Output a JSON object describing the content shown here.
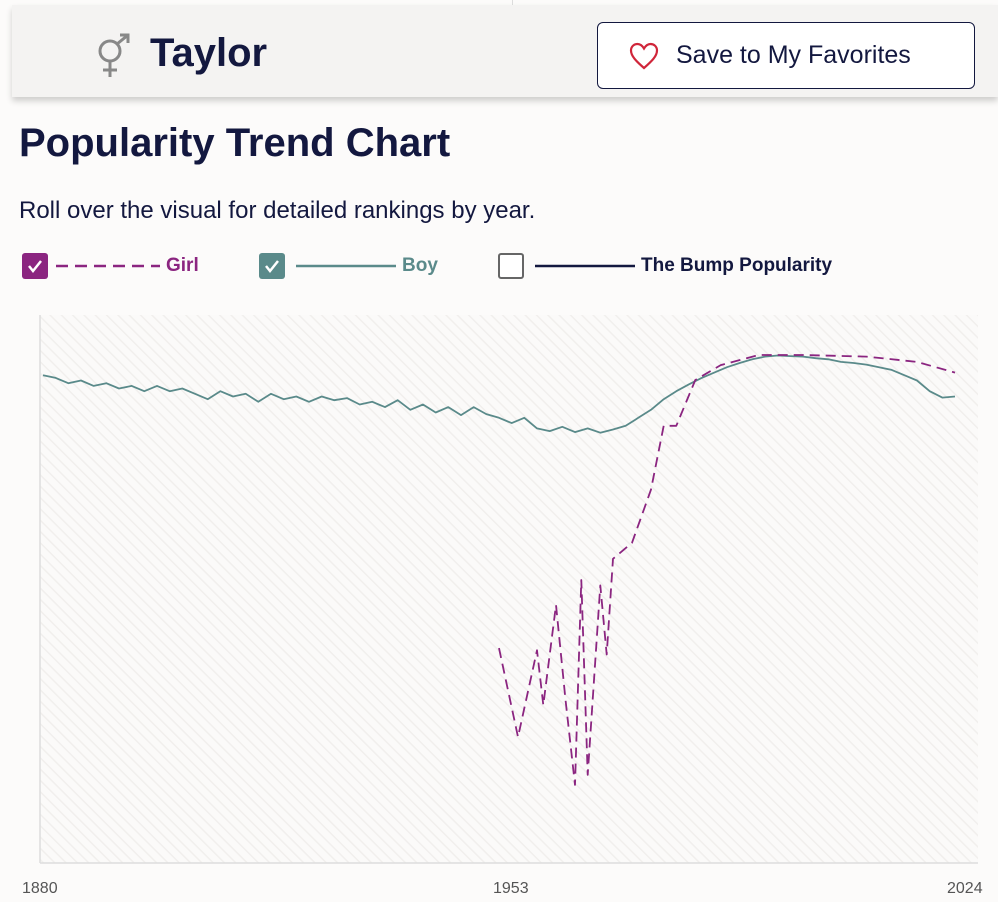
{
  "header": {
    "name": "Taylor",
    "gender_icon": "unisex-gender-icon",
    "favorite_button": {
      "label": "Save to My Favorites",
      "icon": "heart-outline-icon"
    }
  },
  "section": {
    "title": "Popularity Trend Chart",
    "subtitle": "Roll over the visual for detailed rankings by year."
  },
  "legend": [
    {
      "label": "Girl",
      "checked": true,
      "color": "#8b2580",
      "style": "dashed"
    },
    {
      "label": "Boy",
      "checked": true,
      "color": "#5a8a8a",
      "style": "solid"
    },
    {
      "label": "The Bump Popularity",
      "checked": false,
      "color": "#13183f",
      "style": "solid"
    }
  ],
  "chart_data": {
    "type": "line",
    "xlim": [
      1880,
      2024
    ],
    "ylim": [
      0,
      100
    ],
    "x_ticks": [
      "1880",
      "1953",
      "2024"
    ],
    "grid": false,
    "series": [
      {
        "name": "Boy",
        "color": "#5a8a8a",
        "points": [
          [
            1880,
            91.5
          ],
          [
            1882,
            91
          ],
          [
            1884,
            90
          ],
          [
            1886,
            90.5
          ],
          [
            1888,
            89.5
          ],
          [
            1890,
            90
          ],
          [
            1892,
            89
          ],
          [
            1894,
            89.5
          ],
          [
            1896,
            88.5
          ],
          [
            1898,
            89.5
          ],
          [
            1900,
            88.5
          ],
          [
            1902,
            89
          ],
          [
            1904,
            88
          ],
          [
            1906,
            87
          ],
          [
            1908,
            88.5
          ],
          [
            1910,
            87.5
          ],
          [
            1912,
            88
          ],
          [
            1914,
            86.5
          ],
          [
            1916,
            88
          ],
          [
            1918,
            87
          ],
          [
            1920,
            87.5
          ],
          [
            1922,
            86.5
          ],
          [
            1924,
            87.5
          ],
          [
            1926,
            86.8
          ],
          [
            1928,
            87.2
          ],
          [
            1930,
            86
          ],
          [
            1932,
            86.5
          ],
          [
            1934,
            85.5
          ],
          [
            1936,
            86.8
          ],
          [
            1938,
            85
          ],
          [
            1940,
            86
          ],
          [
            1942,
            84.5
          ],
          [
            1944,
            85.5
          ],
          [
            1946,
            84
          ],
          [
            1948,
            85.5
          ],
          [
            1950,
            84.2
          ],
          [
            1952,
            83.5
          ],
          [
            1954,
            82.5
          ],
          [
            1956,
            83.5
          ],
          [
            1958,
            81.5
          ],
          [
            1960,
            81
          ],
          [
            1962,
            81.8
          ],
          [
            1964,
            80.8
          ],
          [
            1966,
            81.5
          ],
          [
            1968,
            80.7
          ],
          [
            1970,
            81.3
          ],
          [
            1972,
            82
          ],
          [
            1974,
            83.5
          ],
          [
            1976,
            85
          ],
          [
            1978,
            87
          ],
          [
            1980,
            88.5
          ],
          [
            1982,
            89.8
          ],
          [
            1984,
            91
          ],
          [
            1986,
            92
          ],
          [
            1988,
            93
          ],
          [
            1990,
            93.8
          ],
          [
            1992,
            94.5
          ],
          [
            1994,
            95
          ],
          [
            1996,
            95.2
          ],
          [
            1998,
            95.1
          ],
          [
            2000,
            95
          ],
          [
            2002,
            94.7
          ],
          [
            2004,
            94.5
          ],
          [
            2006,
            94
          ],
          [
            2008,
            93.8
          ],
          [
            2010,
            93.5
          ],
          [
            2012,
            93
          ],
          [
            2014,
            92.5
          ],
          [
            2016,
            91.5
          ],
          [
            2018,
            90.5
          ],
          [
            2020,
            88.5
          ],
          [
            2022,
            87.3
          ],
          [
            2024,
            87.5
          ]
        ]
      },
      {
        "name": "Girl",
        "color": "#8b2580",
        "points": [
          [
            1952,
            40.2
          ],
          [
            1955,
            23.5
          ],
          [
            1958,
            39.8
          ],
          [
            1959,
            29.5
          ],
          [
            1961,
            48.3
          ],
          [
            1962.5,
            30.5
          ],
          [
            1964,
            14.5
          ],
          [
            1965,
            53
          ],
          [
            1966,
            16.4
          ],
          [
            1968,
            52
          ],
          [
            1969,
            39
          ],
          [
            1970,
            57
          ],
          [
            1973,
            60
          ],
          [
            1976,
            70
          ],
          [
            1978,
            82
          ],
          [
            1980,
            82
          ],
          [
            1983,
            90.6
          ],
          [
            1987,
            93.4
          ],
          [
            1993,
            95.3
          ],
          [
            2000,
            95.3
          ],
          [
            2010,
            95
          ],
          [
            2018,
            94
          ],
          [
            2024,
            92
          ]
        ]
      }
    ]
  }
}
